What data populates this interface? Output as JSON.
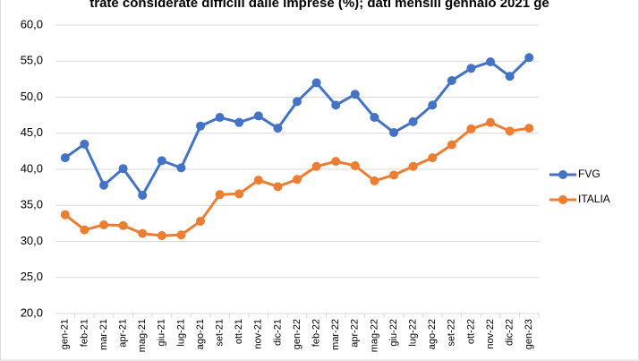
{
  "chart_data": {
    "type": "line",
    "title": "trate considerate difficili dalle imprese (%); dati mensili gennaio 2021 ge",
    "categories": [
      "gen-21",
      "feb-21",
      "mar-21",
      "apr-21",
      "mag-21",
      "giu-21",
      "lug-21",
      "ago-21",
      "set-21",
      "ott-21",
      "nov-21",
      "dic-21",
      "gen-22",
      "feb-22",
      "mar-22",
      "apr-22",
      "mag-22",
      "giu-22",
      "lug-22",
      "ago-22",
      "set-22",
      "ott-22",
      "nov-22",
      "dic-22",
      "gen-23"
    ],
    "series": [
      {
        "name": "FVG",
        "color": "#4472c4",
        "values": [
          41.6,
          43.5,
          37.8,
          40.1,
          36.4,
          41.2,
          40.2,
          46.0,
          47.2,
          46.5,
          47.4,
          45.7,
          49.4,
          52.0,
          48.9,
          50.4,
          47.2,
          45.1,
          46.6,
          48.9,
          52.3,
          54.0,
          54.9,
          52.9,
          55.5
        ]
      },
      {
        "name": "ITALIA",
        "color": "#ed7d31",
        "values": [
          33.7,
          31.6,
          32.3,
          32.2,
          31.1,
          30.8,
          30.9,
          32.8,
          36.5,
          36.6,
          38.5,
          37.6,
          38.6,
          40.4,
          41.1,
          40.5,
          38.4,
          39.2,
          40.4,
          41.6,
          43.4,
          45.6,
          46.5,
          45.3,
          45.7
        ]
      }
    ],
    "ylim": [
      20,
      60
    ],
    "yticks": [
      {
        "value": 20,
        "label": "20,0"
      },
      {
        "value": 25,
        "label": "25,0"
      },
      {
        "value": 30,
        "label": "30,0"
      },
      {
        "value": 35,
        "label": "35,0"
      },
      {
        "value": 40,
        "label": "40,0"
      },
      {
        "value": 45,
        "label": "45,0"
      },
      {
        "value": 50,
        "label": "50,0"
      },
      {
        "value": 55,
        "label": "55,0"
      },
      {
        "value": 60,
        "label": "60,0"
      }
    ],
    "grid": true,
    "legend": "right"
  }
}
